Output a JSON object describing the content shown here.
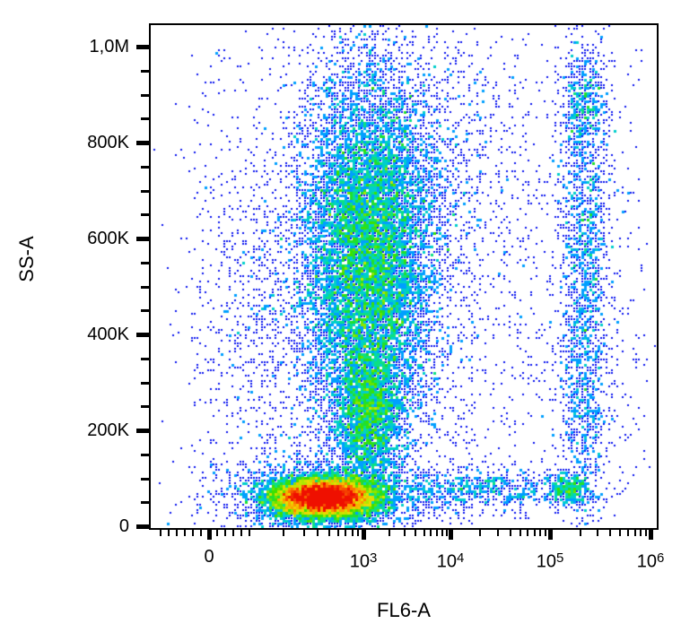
{
  "figure": {
    "background_color": "#ffffff",
    "frame_color": "#000000",
    "tick_color": "#000000"
  },
  "chart_data": {
    "type": "scatter",
    "subtype": "flow-cytometry-pseudocolor-density",
    "title": "",
    "xlabel": "FL6-A",
    "ylabel": "SS-A",
    "x_axis": {
      "scale": "biexponential",
      "range": [
        -150,
        1000000
      ],
      "major_ticks": [
        {
          "value": 0,
          "text": "0"
        },
        {
          "value": 1000,
          "base": "10",
          "exp": "3"
        },
        {
          "value": 10000,
          "base": "10",
          "exp": "4"
        },
        {
          "value": 100000,
          "base": "10",
          "exp": "5"
        },
        {
          "value": 1000000,
          "base": "10",
          "exp": "6"
        }
      ],
      "minor_ticks_linear": {
        "from": -120,
        "to": 100,
        "step": 20
      },
      "minor_ticks_log_decades": [
        2,
        3,
        4,
        5
      ]
    },
    "y_axis": {
      "scale": "linear",
      "range": [
        0,
        1045000
      ],
      "major_ticks": [
        {
          "value": 0,
          "text": "0"
        },
        {
          "value": 200000,
          "text": "200K"
        },
        {
          "value": 400000,
          "text": "400K"
        },
        {
          "value": 600000,
          "text": "600K"
        },
        {
          "value": 800000,
          "text": "800K"
        },
        {
          "value": 1000000,
          "text": "1,0M"
        }
      ],
      "minor_tick_step": 50000
    },
    "colormap": {
      "scale": "log",
      "cell_cap": 25,
      "stops": [
        [
          0.0,
          "#0b16f0"
        ],
        [
          0.22,
          "#0b16f0"
        ],
        [
          0.34,
          "#00a2ff"
        ],
        [
          0.46,
          "#00e0b8"
        ],
        [
          0.58,
          "#2bdf00"
        ],
        [
          0.7,
          "#a8e800"
        ],
        [
          0.8,
          "#f0dc00"
        ],
        [
          0.9,
          "#ff8a00"
        ],
        [
          1.0,
          "#ef1000"
        ]
      ]
    },
    "populations": [
      {
        "name": "debris_lymphocytes_core",
        "dist": "gauss",
        "x_center": 450,
        "x_sigma_decades": 0.27,
        "y_center": 60000,
        "y_sigma": 20000,
        "n": 9000
      },
      {
        "name": "debris_lymphocytes_halo",
        "dist": "gauss",
        "x_center": 450,
        "x_sigma_decades": 0.55,
        "y_center": 62000,
        "y_sigma": 45000,
        "n": 1800
      },
      {
        "name": "granulocyte_column",
        "dist": "gauss",
        "x_center": 1150,
        "x_sigma_decades": 0.34,
        "y_center": 565000,
        "y_sigma": 200000,
        "n": 10000
      },
      {
        "name": "granulocyte_halo",
        "dist": "gauss",
        "x_center": 1300,
        "x_sigma_decades": 0.75,
        "y_center": 550000,
        "y_sigma": 280000,
        "n": 2600
      },
      {
        "name": "monocyte_neck",
        "dist": "gauss",
        "x_center": 1150,
        "x_sigma_decades": 0.18,
        "y_center": 230000,
        "y_sigma": 80000,
        "n": 2200
      },
      {
        "name": "positive_column_main",
        "dist": "gauss",
        "x_center": 220000,
        "x_sigma_decades": 0.13,
        "y_center": 580000,
        "y_sigma": 200000,
        "n": 1100
      },
      {
        "name": "positive_column_low",
        "dist": "gauss",
        "x_center": 220000,
        "x_sigma_decades": 0.13,
        "y_center": 250000,
        "y_sigma": 120000,
        "n": 450
      },
      {
        "name": "positive_column_top",
        "dist": "gauss",
        "x_center": 220000,
        "x_sigma_decades": 0.12,
        "y_center": 880000,
        "y_sigma": 60000,
        "n": 450
      },
      {
        "name": "positive_column_halo",
        "dist": "gauss",
        "x_center": 220000,
        "x_sigma_decades": 0.3,
        "y_center": 500000,
        "y_sigma": 260000,
        "n": 320
      },
      {
        "name": "positive_low_cluster",
        "dist": "gauss",
        "x_center": 160000,
        "x_sigma_decades": 0.1,
        "y_center": 80000,
        "y_sigma": 18000,
        "n": 320
      },
      {
        "name": "low_ss_band",
        "dist": "gauss",
        "x_center": 20000,
        "x_sigma_decades": 0.55,
        "y_center": 75000,
        "y_sigma": 22000,
        "n": 700
      },
      {
        "name": "upper_mid_scatter",
        "dist": "gauss",
        "x_center": 6000,
        "x_sigma_decades": 0.45,
        "y_center": 780000,
        "y_sigma": 130000,
        "n": 550
      },
      {
        "name": "left_scatter",
        "dist": "gauss",
        "x_center": 120,
        "x_sigma_decades": 0.35,
        "y_center": 420000,
        "y_sigma": 150000,
        "n": 450
      },
      {
        "name": "background_scatter",
        "dist": "uniform",
        "x_range": [
          -50,
          950000
        ],
        "y_range": [
          0,
          1000000
        ],
        "n": 900
      }
    ]
  }
}
